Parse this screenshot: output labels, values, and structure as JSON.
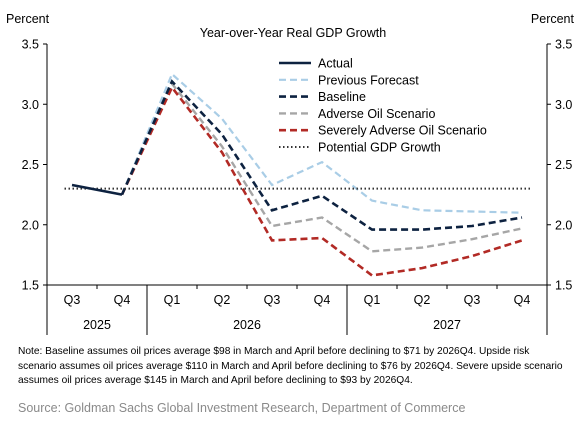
{
  "chart_data": {
    "type": "line",
    "title": "Year-over-Year  Real GDP Growth",
    "ylabel_left": "Percent",
    "ylabel_right": "Percent",
    "ylim": [
      1.5,
      3.5
    ],
    "yticks": [
      "1.5",
      "2.0",
      "2.5",
      "3.0",
      "3.5"
    ],
    "grid": false,
    "legend_position": "top-right",
    "categories": [
      "Q3",
      "Q4",
      "Q1",
      "Q2",
      "Q3",
      "Q4",
      "Q1",
      "Q2",
      "Q3",
      "Q4"
    ],
    "year_groups": [
      {
        "label": "2025",
        "start": 0,
        "end": 1
      },
      {
        "label": "2026",
        "start": 2,
        "end": 5
      },
      {
        "label": "2027",
        "start": 6,
        "end": 9
      }
    ],
    "series": [
      {
        "name": "Actual",
        "color": "#0d2240",
        "style": "solid",
        "values": [
          2.33,
          2.25,
          null,
          null,
          null,
          null,
          null,
          null,
          null,
          null
        ]
      },
      {
        "name": "Previous Forecast",
        "color": "#a9cde6",
        "style": "dashed",
        "values": [
          null,
          2.25,
          3.25,
          2.88,
          2.33,
          2.52,
          2.2,
          2.12,
          2.11,
          2.1
        ]
      },
      {
        "name": "Baseline",
        "color": "#0d2240",
        "style": "dashed",
        "values": [
          null,
          2.25,
          3.19,
          2.75,
          2.12,
          2.24,
          1.96,
          1.96,
          1.99,
          2.06
        ]
      },
      {
        "name": "Adverse Oil Scenario",
        "color": "#a6a6a6",
        "style": "dashed",
        "values": [
          null,
          2.25,
          3.17,
          2.65,
          1.99,
          2.06,
          1.78,
          1.81,
          1.88,
          1.97
        ]
      },
      {
        "name": "Severely Adverse Oil Scenario",
        "color": "#b22a25",
        "style": "dashed",
        "values": [
          null,
          2.25,
          3.14,
          2.6,
          1.87,
          1.89,
          1.58,
          1.64,
          1.74,
          1.87
        ]
      },
      {
        "name": "Potential GDP Growth",
        "color": "#333333",
        "style": "dotted",
        "values": [
          2.3,
          2.3,
          2.3,
          2.3,
          2.3,
          2.3,
          2.3,
          2.3,
          2.3,
          2.3
        ]
      }
    ]
  },
  "note": "Note: Baseline assumes oil prices average $98 in March and April before declining to $71 by 2026Q4. Upside risk scenario assumes oil prices average $110 in March and April before declining to $76 by 2026Q4. Severe upside scenario assumes oil prices average $145 in March and April before declining to $93 by 2026Q4.",
  "source": "Source: Goldman Sachs Global Investment Research, Department of Commerce"
}
